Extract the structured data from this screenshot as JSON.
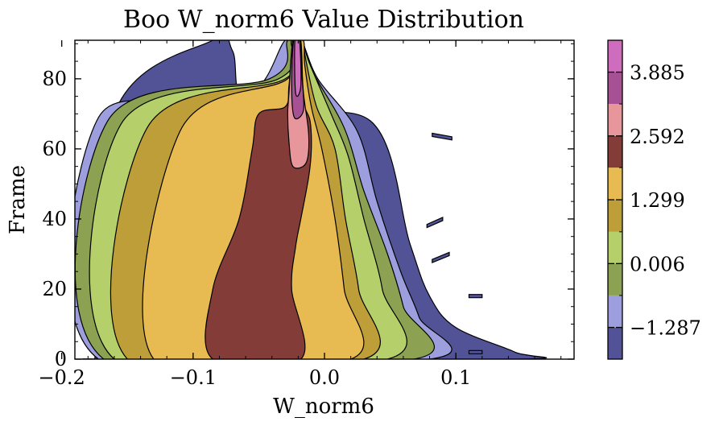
{
  "chart_data": {
    "type": "heatmap",
    "subtype": "filled-contour",
    "title": "Boo W_norm6 Value Distribution",
    "xlabel": "W_norm6",
    "ylabel": "Frame",
    "xlim": [
      -0.19,
      0.19
    ],
    "ylim": [
      0,
      91
    ],
    "xticks": [
      -0.2,
      -0.1,
      0.0,
      0.1
    ],
    "xtick_labels": [
      "−0.2",
      "−0.1",
      "0.0",
      "0.1"
    ],
    "yticks": [
      0,
      20,
      40,
      60,
      80
    ],
    "ytick_labels": [
      "0",
      "20",
      "40",
      "60",
      "80"
    ],
    "grid": false,
    "colorbar": {
      "levels": [
        -1.93,
        -1.287,
        -0.64,
        0.006,
        0.65,
        1.299,
        1.95,
        2.592,
        3.24,
        3.885,
        4.53
      ],
      "colors": [
        "#525297",
        "#9c9ede",
        "#8ca252",
        "#b5cf6b",
        "#bd9e39",
        "#e7ba52",
        "#843c39",
        "#e7969c",
        "#a55194",
        "#ce6dbd"
      ],
      "tick_values": [
        -1.287,
        0.006,
        1.299,
        2.592,
        3.885
      ],
      "tick_labels": [
        "−1.287",
        "0.006",
        "1.299",
        "2.592",
        "3.885"
      ]
    },
    "regions": [
      {
        "level": 0,
        "x": [
          -0.175,
          -0.155,
          0.145,
          0.145,
          0.1,
          0.08,
          0.065,
          0.035,
          -0.055,
          -0.07,
          -0.085,
          -0.16,
          -0.175
        ],
        "y": [
          0,
          0,
          0,
          2,
          9,
          18,
          33,
          68,
          70,
          88,
          91,
          70,
          -1
        ]
      },
      {
        "level": 1,
        "x": [
          -0.172,
          0.08,
          0.072,
          0.058,
          0.04,
          0.025,
          -0.005,
          -0.018,
          -0.03,
          -0.045,
          -0.07,
          -0.172
        ],
        "y": [
          0,
          0,
          12,
          25,
          45,
          65,
          80,
          91,
          91,
          80,
          69,
          69
        ]
      },
      {
        "level": 2,
        "x": [
          -0.168,
          0.068,
          0.06,
          0.048,
          0.03,
          0.015,
          -0.009,
          -0.018,
          -0.028,
          -0.042,
          -0.165
        ],
        "y": [
          0,
          0,
          15,
          30,
          48,
          66,
          82,
          91,
          91,
          80,
          68
        ]
      },
      {
        "level": 3,
        "x": [
          -0.16,
          0.048,
          0.044,
          0.03,
          0.018,
          0.005,
          -0.012,
          -0.017,
          -0.025,
          -0.035,
          -0.155
        ],
        "y": [
          0,
          0,
          20,
          40,
          58,
          70,
          85,
          91,
          91,
          80,
          67
        ]
      },
      {
        "level": 4,
        "x": [
          -0.15,
          0.03,
          0.026,
          0.016,
          0.008,
          -0.006,
          -0.014,
          -0.017,
          -0.024,
          -0.03,
          -0.135
        ],
        "y": [
          0,
          0,
          20,
          40,
          60,
          72,
          85,
          91,
          91,
          80,
          66
        ]
      },
      {
        "level": 5,
        "x": [
          -0.13,
          0.02,
          0.015,
          0.008,
          -0.002,
          -0.01,
          -0.015,
          -0.016,
          -0.024,
          -0.028,
          -0.11
        ],
        "y": [
          0,
          0,
          20,
          40,
          60,
          72,
          84,
          91,
          91,
          80,
          65
        ]
      },
      {
        "level": 6,
        "x": [
          -0.085,
          -0.018,
          -0.025,
          -0.022,
          -0.018,
          -0.012,
          -0.01,
          -0.011,
          -0.016,
          -0.018,
          -0.024,
          -0.027,
          -0.03,
          -0.05,
          -0.055,
          -0.065,
          -0.085
        ],
        "y": [
          0,
          0,
          20,
          32,
          40,
          52,
          60,
          68,
          74,
          91,
          91,
          78,
          72,
          70,
          60,
          40,
          20
        ]
      },
      {
        "level": 7,
        "x": [
          -0.024,
          -0.014,
          -0.012,
          -0.016,
          -0.019,
          -0.024,
          -0.027,
          -0.028,
          -0.027
        ],
        "y": [
          55,
          56,
          64,
          76,
          91,
          91,
          76,
          70,
          62
        ]
      },
      {
        "level": 8,
        "x": [
          -0.023,
          -0.016,
          -0.017,
          -0.0195,
          -0.0235,
          -0.025
        ],
        "y": [
          69,
          71,
          80,
          91,
          91,
          78
        ]
      },
      {
        "level": 9,
        "x": [
          -0.022,
          -0.018,
          -0.019,
          -0.0225
        ],
        "y": [
          76,
          78,
          91,
          91
        ]
      }
    ],
    "outliers": [
      {
        "level": 0,
        "x": [
          0.082,
          0.097
        ],
        "y": [
          64,
          63
        ]
      },
      {
        "level": 0,
        "x": [
          0.078,
          0.09
        ],
        "y": [
          38,
          40
        ]
      },
      {
        "level": 0,
        "x": [
          0.082,
          0.095
        ],
        "y": [
          28,
          30
        ]
      },
      {
        "level": 0,
        "x": [
          0.11,
          0.12
        ],
        "y": [
          18,
          18
        ]
      },
      {
        "level": 0,
        "x": [
          0.11,
          0.12
        ],
        "y": [
          2,
          2
        ]
      }
    ]
  }
}
